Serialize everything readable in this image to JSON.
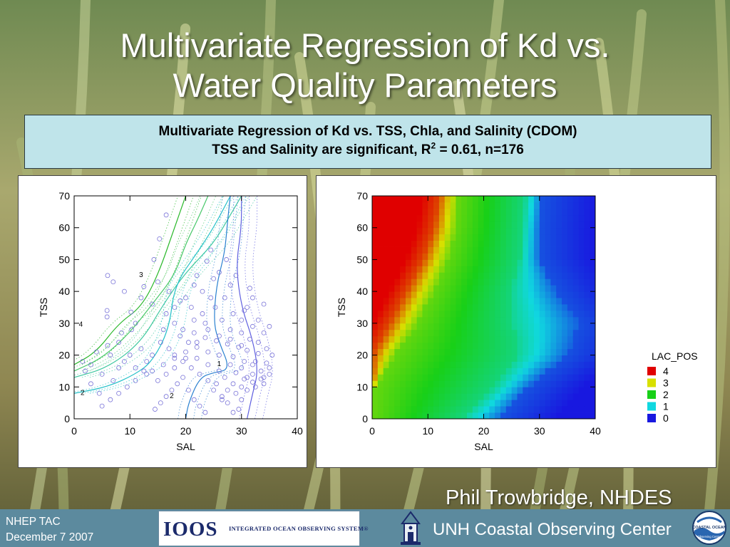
{
  "slide": {
    "title_line1": "Multivariate Regression of Kd vs.",
    "title_line2": "Water Quality Parameters",
    "info_line1": "Multivariate Regression of Kd vs. TSS, Chla, and Salinity (CDOM)",
    "info_line2_pre": "TSS and Salinity are significant, R",
    "info_line2_sup": "2",
    "info_line2_post": " = 0.61, n=176",
    "author": "Phil Trowbridge, NHDES",
    "meeting": "NHEP TAC",
    "date": "December 7 2007",
    "ioos_logo": "IOOS",
    "ioos_tagline": "INTEGRATED OCEAN OBSERVING SYSTEM®",
    "organization": "UNH Coastal Observing Center",
    "unh_logo_text": "COASTAL OCEAN",
    "unh_logo_text2": "Observing Center"
  },
  "chart_data": [
    {
      "type": "scatter",
      "title": "",
      "xlabel": "SAL",
      "ylabel": "TSS",
      "xlim": [
        0,
        40
      ],
      "ylim": [
        0,
        70
      ],
      "xticks": [
        0,
        10,
        20,
        30,
        40
      ],
      "yticks": [
        0,
        10,
        20,
        30,
        40,
        50,
        60,
        70
      ],
      "grid": false,
      "contour_labels": [
        {
          "text": "4",
          "x": 1.2,
          "y": 29
        },
        {
          "text": "3",
          "x": 12,
          "y": 44.5
        },
        {
          "text": "2",
          "x": 1.5,
          "y": 7.5
        },
        {
          "text": "2",
          "x": 17.5,
          "y": 6.5
        },
        {
          "text": "1",
          "x": 26,
          "y": 16.5
        }
      ],
      "contours": [
        {
          "level": 4,
          "color": "#29b829",
          "points": [
            [
              0,
              17
            ],
            [
              4,
              21
            ],
            [
              8,
              30
            ],
            [
              12,
              35
            ],
            [
              15,
              45
            ],
            [
              18,
              60
            ],
            [
              20,
              70
            ]
          ]
        },
        {
          "level": 3.5,
          "color": "#48c86a",
          "points": [
            [
              0,
              15
            ],
            [
              5,
              19
            ],
            [
              10,
              27
            ],
            [
              14,
              36
            ],
            [
              18,
              45
            ],
            [
              20,
              55
            ],
            [
              22,
              62
            ],
            [
              24,
              70
            ]
          ]
        },
        {
          "level": 3,
          "color": "#3ec8a0",
          "points": [
            [
              0,
              13
            ],
            [
              6,
              16
            ],
            [
              12,
              24
            ],
            [
              16,
              36
            ],
            [
              20,
              46
            ],
            [
              25,
              55
            ],
            [
              28,
              64
            ],
            [
              30,
              70
            ]
          ]
        },
        {
          "level": 2.5,
          "color": "#22c0c8",
          "points": [
            [
              0,
              8
            ],
            [
              6,
              10
            ],
            [
              11,
              14
            ],
            [
              14,
              18
            ],
            [
              17,
              28
            ],
            [
              18,
              42
            ],
            [
              22,
              52
            ],
            [
              25,
              60
            ],
            [
              28,
              70
            ]
          ]
        },
        {
          "level": 1.5,
          "color": "#2a80d0",
          "points": [
            [
              20,
              0
            ],
            [
              20.5,
              5
            ],
            [
              22.5,
              13
            ],
            [
              25,
              14.5
            ],
            [
              28,
              15.5
            ],
            [
              26,
              24
            ],
            [
              25,
              30
            ],
            [
              25.5,
              42
            ],
            [
              27,
              52
            ],
            [
              27.5,
              62
            ],
            [
              28,
              70
            ]
          ]
        },
        {
          "level": 1,
          "color": "#5f5fe0",
          "points": [
            [
              31,
              0
            ],
            [
              32,
              8
            ],
            [
              33,
              15
            ],
            [
              32,
              25
            ],
            [
              30,
              35
            ],
            [
              29,
              48
            ],
            [
              30,
              60
            ],
            [
              30,
              70
            ]
          ]
        }
      ],
      "points": [
        [
          10.3,
          28
        ],
        [
          5.9,
          34
        ],
        [
          5.9,
          32
        ],
        [
          10.2,
          33.5
        ],
        [
          12.5,
          41.5
        ],
        [
          14.3,
          50
        ],
        [
          15.3,
          56.5
        ],
        [
          16.5,
          64
        ],
        [
          24.5,
          53
        ],
        [
          23.8,
          49.5
        ],
        [
          27.3,
          50
        ],
        [
          28,
          42
        ],
        [
          21.5,
          42
        ],
        [
          23,
          40
        ],
        [
          24.5,
          38
        ],
        [
          25.3,
          35
        ],
        [
          31,
          35
        ],
        [
          32,
          38
        ],
        [
          34,
          36
        ],
        [
          30.5,
          34
        ],
        [
          21.5,
          31
        ],
        [
          23.5,
          30
        ],
        [
          26.5,
          31
        ],
        [
          28,
          28
        ],
        [
          30,
          27
        ],
        [
          31.5,
          25
        ],
        [
          33,
          24
        ],
        [
          34.5,
          22
        ],
        [
          19,
          26
        ],
        [
          20.5,
          24
        ],
        [
          22,
          22.5
        ],
        [
          24,
          21
        ],
        [
          26,
          20
        ],
        [
          28.5,
          19.5
        ],
        [
          30.5,
          18
        ],
        [
          32,
          17
        ],
        [
          33.5,
          15
        ],
        [
          35,
          14
        ],
        [
          34,
          11
        ],
        [
          32.5,
          10
        ],
        [
          31,
          9
        ],
        [
          30,
          6
        ],
        [
          29.5,
          3
        ],
        [
          28.5,
          2
        ],
        [
          27.5,
          5
        ],
        [
          26.5,
          7
        ],
        [
          25,
          9
        ],
        [
          24,
          12
        ],
        [
          22.5,
          14
        ],
        [
          21,
          16
        ],
        [
          19.5,
          18
        ],
        [
          18,
          20
        ],
        [
          17,
          22
        ],
        [
          15.5,
          24
        ],
        [
          14,
          20
        ],
        [
          13,
          18
        ],
        [
          12.5,
          15
        ],
        [
          11,
          12
        ],
        [
          9.5,
          10
        ],
        [
          8,
          8
        ],
        [
          6.5,
          6
        ],
        [
          5,
          4
        ],
        [
          4.5,
          8
        ],
        [
          3,
          11
        ],
        [
          2,
          15
        ],
        [
          1.5,
          18
        ],
        [
          4,
          21
        ],
        [
          6,
          23
        ],
        [
          8,
          24
        ],
        [
          14.5,
          3
        ],
        [
          15.5,
          5
        ],
        [
          16.5,
          7
        ],
        [
          17.5,
          9
        ],
        [
          18.5,
          11
        ],
        [
          19.5,
          13
        ],
        [
          20.5,
          9
        ],
        [
          21.5,
          6
        ],
        [
          22.5,
          4
        ],
        [
          23.5,
          2
        ],
        [
          25.5,
          11
        ],
        [
          27,
          13
        ],
        [
          29,
          14.5
        ],
        [
          30.5,
          12.5
        ],
        [
          32,
          11.5
        ],
        [
          33.5,
          12.5
        ],
        [
          34.5,
          17.5
        ],
        [
          35.5,
          20
        ],
        [
          33,
          20.5
        ],
        [
          31,
          21.5
        ],
        [
          29.5,
          22.5
        ],
        [
          27.5,
          23.5
        ],
        [
          25.5,
          24.5
        ],
        [
          23.5,
          25.5
        ],
        [
          21.5,
          27
        ],
        [
          19.5,
          28
        ],
        [
          18,
          30
        ],
        [
          16.5,
          33
        ],
        [
          14,
          36
        ],
        [
          12,
          38
        ],
        [
          9,
          40
        ],
        [
          7,
          43
        ],
        [
          6,
          45
        ],
        [
          11,
          30
        ],
        [
          8.5,
          27
        ],
        [
          6.5,
          20
        ],
        [
          9,
          18
        ],
        [
          11,
          16
        ],
        [
          13,
          14
        ],
        [
          15,
          12
        ],
        [
          16.5,
          14
        ],
        [
          18,
          16
        ],
        [
          20,
          19
        ],
        [
          22,
          19
        ],
        [
          24,
          17
        ],
        [
          26,
          15
        ],
        [
          28,
          17
        ],
        [
          30,
          16
        ],
        [
          32,
          14
        ],
        [
          34,
          13
        ],
        [
          35,
          16
        ],
        [
          28.5,
          11
        ],
        [
          27.5,
          9
        ],
        [
          26.5,
          6
        ],
        [
          29,
          8
        ],
        [
          30,
          10
        ],
        [
          31,
          13
        ],
        [
          32.5,
          18
        ],
        [
          30,
          23
        ],
        [
          28,
          25
        ],
        [
          26,
          26
        ],
        [
          24,
          28
        ],
        [
          22,
          24
        ],
        [
          20,
          21
        ],
        [
          18,
          19
        ],
        [
          16,
          17
        ],
        [
          14,
          15
        ],
        [
          12,
          22
        ],
        [
          10,
          20
        ],
        [
          8,
          16
        ],
        [
          7,
          12
        ],
        [
          5,
          14
        ],
        [
          3,
          17
        ],
        [
          16,
          28
        ],
        [
          18,
          35
        ],
        [
          20,
          38
        ],
        [
          22,
          45
        ],
        [
          26,
          46
        ],
        [
          29,
          45
        ],
        [
          31.5,
          41
        ],
        [
          33,
          31
        ],
        [
          35,
          29
        ],
        [
          34,
          27
        ],
        [
          32,
          29
        ],
        [
          30,
          31
        ],
        [
          28.5,
          33
        ],
        [
          27,
          38
        ],
        [
          25,
          44
        ],
        [
          23,
          33
        ],
        [
          21,
          35
        ],
        [
          19,
          37
        ],
        [
          17,
          40
        ],
        [
          15,
          43
        ]
      ]
    },
    {
      "type": "heatmap",
      "title": "",
      "xlabel": "SAL",
      "ylabel": "TSS",
      "xlim": [
        0,
        40
      ],
      "ylim": [
        0,
        70
      ],
      "xticks": [
        0,
        10,
        20,
        30,
        40
      ],
      "yticks": [
        0,
        10,
        20,
        30,
        40,
        50,
        60,
        70
      ],
      "legend_title": "LAC_POS",
      "legend_position": "right",
      "legend": [
        {
          "label": "4",
          "color": "#e00000"
        },
        {
          "label": "3",
          "color": "#d8e000"
        },
        {
          "label": "2",
          "color": "#18d018"
        },
        {
          "label": "1",
          "color": "#10d8e0"
        },
        {
          "label": "0",
          "color": "#1818e0"
        }
      ],
      "value_range": [
        0,
        4
      ],
      "boundaries": {
        "y_levels": [
          0,
          10,
          20,
          25,
          30,
          40,
          50,
          60,
          70
        ],
        "level_4_to_3": [
          0,
          0,
          0,
          1.5,
          3,
          6,
          9,
          11,
          12
        ],
        "level_3_to_2": [
          0,
          0.5,
          4,
          6,
          8,
          11,
          13.5,
          15,
          15.5
        ],
        "level_2_to_1": [
          16,
          22,
          26,
          26,
          25,
          25,
          26.5,
          27,
          27.5
        ],
        "level_1_to_0": [
          23,
          28,
          35,
          36,
          37,
          33,
          30,
          30,
          30.5
        ]
      }
    }
  ]
}
